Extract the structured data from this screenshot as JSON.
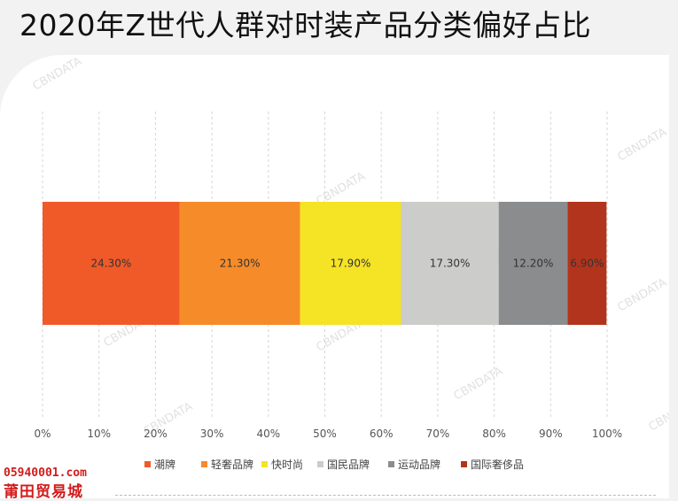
{
  "title": "2020年Z世代人群对时装产品分类偏好占比",
  "chart_data": {
    "type": "bar",
    "orientation": "horizontal",
    "stacked": true,
    "categories": [
      ""
    ],
    "series": [
      {
        "name": "潮牌",
        "values": [
          24.3
        ],
        "label": "24.30%",
        "color": "#f05a28"
      },
      {
        "name": "轻奢品牌",
        "values": [
          21.3
        ],
        "label": "21.30%",
        "color": "#f68b2a"
      },
      {
        "name": "快时尚",
        "values": [
          17.9
        ],
        "label": "17.90%",
        "color": "#f5e325"
      },
      {
        "name": "国民品牌",
        "values": [
          17.3
        ],
        "label": "17.30%",
        "color": "#ccccca"
      },
      {
        "name": "运动品牌",
        "values": [
          12.2
        ],
        "label": "12.20%",
        "color": "#8a8c8e"
      },
      {
        "name": "国际奢侈品",
        "values": [
          6.9
        ],
        "label": "6.90%",
        "color": "#b3341c"
      }
    ],
    "xlim": [
      0,
      100
    ],
    "x_ticks": [
      "0%",
      "10%",
      "20%",
      "30%",
      "40%",
      "50%",
      "60%",
      "70%",
      "80%",
      "90%",
      "100%"
    ],
    "grid": "vertical-dashed",
    "legend_position": "bottom"
  },
  "watermarks": {
    "brand": "CBNDATA",
    "domain": "05940001.com",
    "site": "莆田贸易城"
  }
}
